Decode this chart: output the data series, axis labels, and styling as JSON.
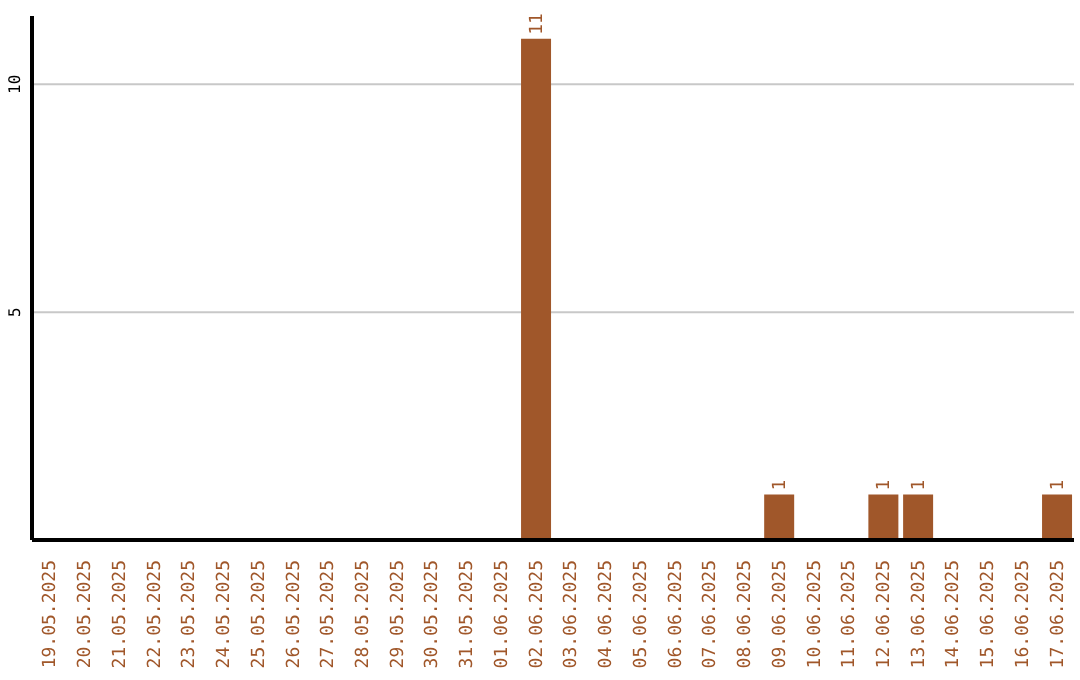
{
  "chart_data": {
    "type": "bar",
    "categories": [
      "19.05.2025",
      "20.05.2025",
      "21.05.2025",
      "22.05.2025",
      "23.05.2025",
      "24.05.2025",
      "25.05.2025",
      "26.05.2025",
      "27.05.2025",
      "28.05.2025",
      "29.05.2025",
      "30.05.2025",
      "31.05.2025",
      "01.06.2025",
      "02.06.2025",
      "03.06.2025",
      "04.06.2025",
      "05.06.2025",
      "06.06.2025",
      "07.06.2025",
      "08.06.2025",
      "09.06.2025",
      "10.06.2025",
      "11.06.2025",
      "12.06.2025",
      "13.06.2025",
      "14.06.2025",
      "15.06.2025",
      "16.06.2025",
      "17.06.2025"
    ],
    "values": [
      0,
      0,
      0,
      0,
      0,
      0,
      0,
      0,
      0,
      0,
      0,
      0,
      0,
      0,
      11,
      0,
      0,
      0,
      0,
      0,
      0,
      1,
      0,
      0,
      1,
      1,
      0,
      0,
      0,
      1
    ],
    "value_labels": [
      null,
      null,
      null,
      null,
      null,
      null,
      null,
      null,
      null,
      null,
      null,
      null,
      null,
      null,
      "11",
      null,
      null,
      null,
      null,
      null,
      null,
      "1",
      null,
      null,
      "1",
      "1",
      null,
      null,
      null,
      "1"
    ],
    "color": "#a0572a",
    "ylim": [
      0,
      11.5
    ],
    "yticks": [
      5,
      10
    ],
    "grid": "y"
  }
}
